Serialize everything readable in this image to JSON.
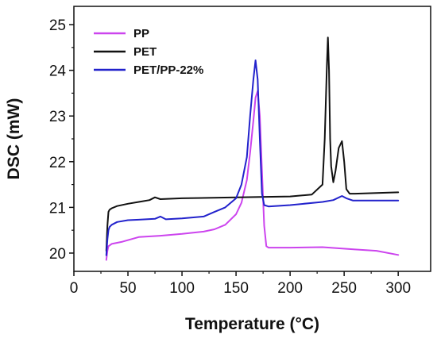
{
  "chart_data": {
    "type": "line",
    "xlabel": "Temperature (°C)",
    "ylabel": "DSC (mW)",
    "xlim": [
      0,
      330
    ],
    "ylim": [
      19.6,
      25.4
    ],
    "xticks": [
      0,
      50,
      100,
      150,
      200,
      250,
      300
    ],
    "yticks": [
      20,
      21,
      22,
      23,
      24,
      25
    ],
    "legend_position": "top-left",
    "series": [
      {
        "name": "PP",
        "color": "#cc44ee",
        "x": [
          30,
          31,
          32,
          35,
          45,
          60,
          80,
          100,
          120,
          130,
          140,
          150,
          155,
          160,
          163,
          166,
          168,
          170,
          172,
          174,
          176,
          178,
          180,
          200,
          230,
          260,
          280,
          300
        ],
        "y": [
          19.85,
          20.05,
          20.15,
          20.2,
          20.25,
          20.35,
          20.38,
          20.42,
          20.47,
          20.52,
          20.62,
          20.85,
          21.1,
          21.6,
          22.2,
          22.9,
          23.4,
          23.55,
          23.0,
          21.8,
          20.6,
          20.15,
          20.12,
          20.12,
          20.13,
          20.08,
          20.05,
          19.96
        ]
      },
      {
        "name": "PET",
        "color": "#111111",
        "x": [
          30,
          31,
          32,
          33,
          35,
          40,
          50,
          60,
          70,
          75,
          80,
          100,
          150,
          200,
          220,
          230,
          232,
          234,
          235,
          236,
          237,
          238,
          240,
          242,
          245,
          248,
          250,
          252,
          255,
          260,
          300
        ],
        "y": [
          20.05,
          20.6,
          20.9,
          20.95,
          20.98,
          21.03,
          21.08,
          21.12,
          21.16,
          21.22,
          21.18,
          21.2,
          21.22,
          21.24,
          21.28,
          21.5,
          22.5,
          24.1,
          24.72,
          24.0,
          22.5,
          21.9,
          21.55,
          21.8,
          22.3,
          22.45,
          22.0,
          21.4,
          21.3,
          21.3,
          21.33
        ]
      },
      {
        "name": "PET/PP-22%",
        "color": "#2222cc",
        "x": [
          30,
          31,
          32,
          33,
          35,
          40,
          50,
          60,
          75,
          80,
          85,
          100,
          120,
          130,
          140,
          150,
          155,
          160,
          163,
          166,
          168,
          170,
          172,
          174,
          176,
          180,
          200,
          230,
          240,
          248,
          252,
          258,
          300
        ],
        "y": [
          19.95,
          20.3,
          20.5,
          20.57,
          20.62,
          20.68,
          20.72,
          20.73,
          20.75,
          20.8,
          20.74,
          20.76,
          20.8,
          20.9,
          21.0,
          21.2,
          21.5,
          22.1,
          23.0,
          23.8,
          24.22,
          23.8,
          22.5,
          21.3,
          21.05,
          21.02,
          21.05,
          21.12,
          21.16,
          21.25,
          21.2,
          21.15,
          21.15
        ]
      }
    ]
  }
}
